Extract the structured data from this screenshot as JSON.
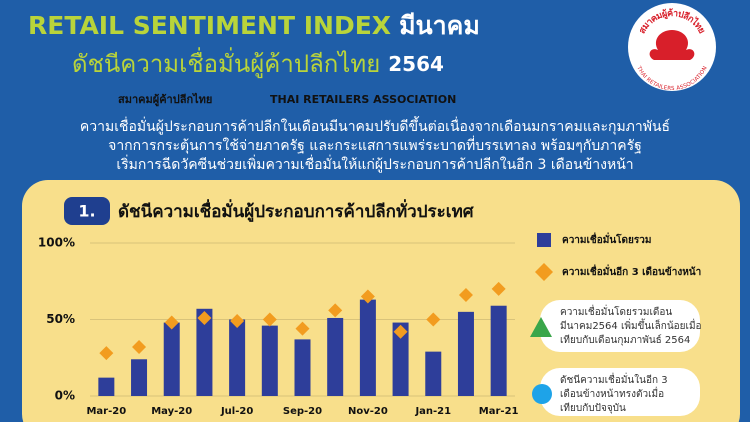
{
  "header": {
    "title": "RETAIL SENTIMENT INDEX",
    "title_month": "มีนาคม",
    "subtitle": "ดัชนีความเชื่อมั่นผู้ค้าปลีกไทย",
    "subtitle_year": "2564",
    "org_th": "สมาคมผู้ค้าปลีกไทย",
    "org_en": "THAI RETAILERS ASSOCIATION",
    "logo_th": "สมาคมผู้ค้าปลีกไทย",
    "logo_en": "THAI RETAILERS ASSOCIATION"
  },
  "intro": [
    "ความเชื่อมั่นผู้ประกอบการค้าปลีกในเดือนมีนาคมปรับดีขึ้นต่อเนื่องจากเดือนมกราคมและกุมภาพันธ์",
    "จากการกระตุ้นการใช้จ่ายภาครัฐ และกระแสการแพร่ระบาดที่บรรเทาลง พร้อมๆกับภาครัฐ",
    "เริ่มการฉีดวัคซีนช่วยเพิ่มความเชื่อมั่นให้แก่ผู้ประกอบการค้าปลีกในอีก 3 เดือนข้างหน้า"
  ],
  "section": {
    "number": "1."
  },
  "chart_data": {
    "type": "bar",
    "title": "ดัชนีความเชื่อมั่นผู้ประกอบการค้าปลีกทั่วประเทศ",
    "categories": [
      "Mar-20",
      null,
      "May-20",
      null,
      "Jul-20",
      null,
      "Sep-20",
      null,
      "Nov-20",
      null,
      "Jan-21",
      null,
      "Mar-21"
    ],
    "series": [
      {
        "name": "ความเชื่อมั่นโดยรวม",
        "color": "#2e3e9a",
        "marker": "bar",
        "values": [
          12,
          24,
          48,
          57,
          50,
          46,
          37,
          51,
          63,
          48,
          29,
          55,
          59
        ]
      },
      {
        "name": "ความเชื่อมั่นอีก 3 เดือนข้างหน้า",
        "color": "#f29c1f",
        "marker": "diamond",
        "values": [
          28,
          32,
          48,
          51,
          49,
          50,
          44,
          56,
          65,
          42,
          50,
          66,
          70
        ]
      }
    ],
    "ylim": [
      0,
      100
    ],
    "yticks": [
      {
        "value": 0,
        "label": "0%"
      },
      {
        "value": 50,
        "label": "50%"
      },
      {
        "value": 100,
        "label": "100%"
      }
    ],
    "grid": true,
    "annotations": [
      [
        "ความเชื่อมั่นโดยรวมเดือน",
        "มีนาคม2564 เพิ่มขึ้นเล็กน้อยเมื่อ",
        "เทียบกับเดือนกุมภาพันธ์ 2564"
      ],
      [
        "ดัชนีความเชื่อมั่นในอีก 3",
        "เดือนข้างหน้าทรงตัวเมื่อ",
        "เทียบกับปัจจุบัน"
      ]
    ]
  }
}
